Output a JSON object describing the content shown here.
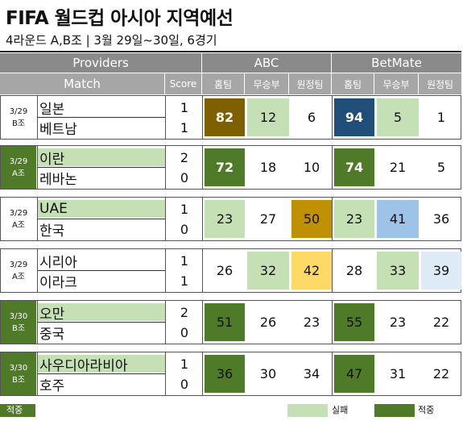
{
  "title": "FIFA 월드컵 아시아 지역예선",
  "subtitle": "4라운드 A,B조 | 3월 29일~30일, 6경기",
  "header": {
    "providers": "Providers",
    "match": "Match",
    "score": "Score",
    "abc": "ABC",
    "betmate": "BetMate",
    "home": "홈팀",
    "draw": "무승부",
    "away": "원정팀"
  },
  "colors": {
    "correct_dark": "#4f7a28",
    "wrong_light": "#c5e0b4",
    "team_highlight_light": "#c5e0b4",
    "team_highlight_dark": "#4f7a28",
    "abc_brown": "#7f6000",
    "betmate_navy": "#1f4e79",
    "gold": "#bf9000",
    "yellow": "#ffd966",
    "blue_light": "#9dc3e6",
    "blue_pale": "#deebf7"
  },
  "matches": [
    {
      "date": "3/29",
      "group": "B조",
      "team1": "일본",
      "team2": "베트남",
      "score1": "1",
      "score2": "1",
      "abc": [
        "82",
        "12",
        "6"
      ],
      "betmate": [
        "94",
        "5",
        "1"
      ]
    },
    {
      "date": "3/29",
      "group": "A조",
      "team1": "이란",
      "team2": "레바논",
      "score1": "2",
      "score2": "0",
      "abc": [
        "72",
        "18",
        "10"
      ],
      "betmate": [
        "74",
        "21",
        "5"
      ]
    },
    {
      "date": "3/29",
      "group": "A조",
      "team1": "UAE",
      "team2": "한국",
      "score1": "1",
      "score2": "0",
      "abc": [
        "23",
        "27",
        "50"
      ],
      "betmate": [
        "23",
        "41",
        "36"
      ]
    },
    {
      "date": "3/29",
      "group": "A조",
      "team1": "시리아",
      "team2": "이라크",
      "score1": "1",
      "score2": "1",
      "abc": [
        "26",
        "32",
        "42"
      ],
      "betmate": [
        "28",
        "33",
        "39"
      ]
    },
    {
      "date": "3/30",
      "group": "B조",
      "team1": "오만",
      "team2": "중국",
      "score1": "2",
      "score2": "0",
      "abc": [
        "51",
        "26",
        "23"
      ],
      "betmate": [
        "55",
        "23",
        "22"
      ]
    },
    {
      "date": "3/30",
      "group": "B조",
      "team1": "사우디아라비아",
      "team2": "호주",
      "score1": "1",
      "score2": "0",
      "abc": [
        "36",
        "30",
        "34"
      ],
      "betmate": [
        "47",
        "31",
        "22"
      ]
    }
  ],
  "legend": {
    "correct_left": "적중",
    "wrong": "실패",
    "correct_right": "적중"
  }
}
